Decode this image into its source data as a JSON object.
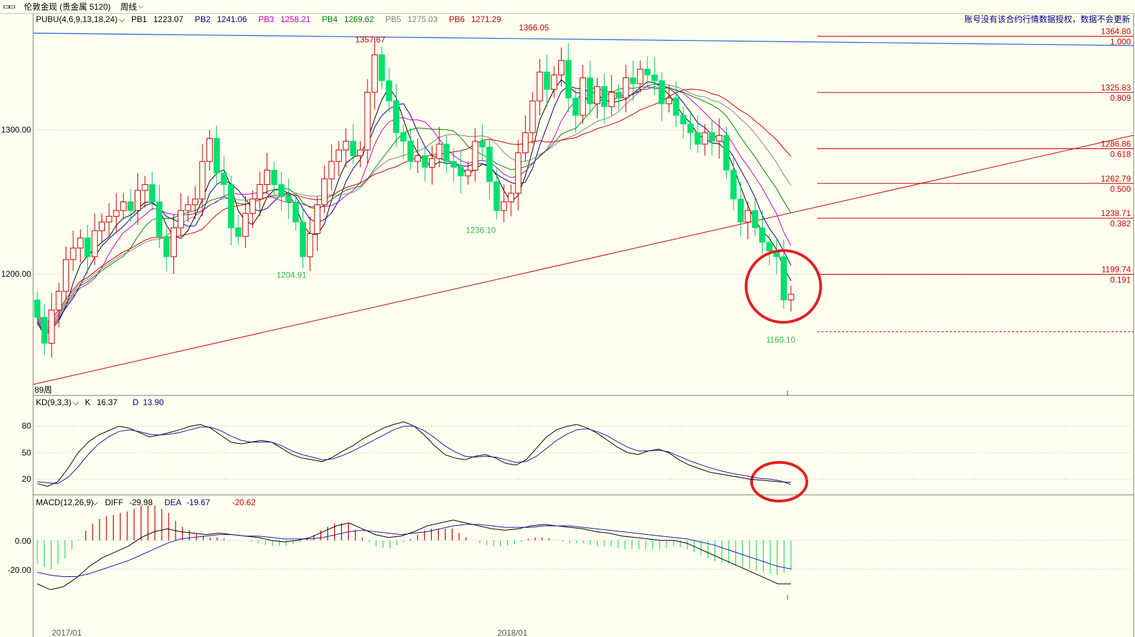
{
  "window": {
    "instrument": "伦敦金现 (贵金属 5120)",
    "period": "周线"
  },
  "notice": "账号没有该合约行情数据授权，数据不会更新",
  "main_panel": {
    "indicator_name": "PUBU(4,6,9,13,18,24)",
    "params": [
      {
        "label": "PB1",
        "value": "1223.07",
        "color": "#000000"
      },
      {
        "label": "PB2",
        "value": "1241.06",
        "color": "#000080"
      },
      {
        "label": "PB3",
        "value": "1258.21",
        "color": "#c000c0"
      },
      {
        "label": "PB4",
        "value": "1269.62",
        "color": "#008000"
      },
      {
        "label": "PB5",
        "value": "1275.03",
        "color": "#808080"
      },
      {
        "label": "PB6",
        "value": "1271.29",
        "color": "#c00000"
      }
    ],
    "y_ticks": [
      "1300.00",
      "1200.00"
    ],
    "ma_label": "89周",
    "peak_labels": [
      {
        "text": "1357.67",
        "color": "#c00000",
        "x": 1357.67
      },
      {
        "text": "1366.05",
        "color": "#c00000",
        "x": 1366.05
      },
      {
        "text": "1204.91",
        "color": "#2db84d",
        "x": 1204.91
      },
      {
        "text": "1236.10",
        "color": "#2db84d",
        "x": 1236.1
      },
      {
        "text": "1160.10",
        "color": "#2db84d",
        "x": 1160.1
      }
    ],
    "fib_levels": [
      {
        "price": "1364.80",
        "ratio": "1.000"
      },
      {
        "price": "1325.83",
        "ratio": "0.809"
      },
      {
        "price": "1286.86",
        "ratio": "0.618"
      },
      {
        "price": "1262.79",
        "ratio": "0.500"
      },
      {
        "price": "1238.71",
        "ratio": "0.382"
      },
      {
        "price": "1199.74",
        "ratio": "0.191"
      }
    ]
  },
  "kd_panel": {
    "name": "KD(9,3,3)",
    "k_label": "K",
    "k_value": "16.37",
    "d_label": "D",
    "d_value": "13.90",
    "y_ticks": [
      "80",
      "50",
      "20"
    ]
  },
  "macd_panel": {
    "name": "MACD(12,26,9)",
    "diff_label": "DIFF",
    "diff_value": "-29.98",
    "dea_label": "DEA",
    "dea_value": "-19.67",
    "macd_value": "-20.62",
    "y_ticks": [
      "0.00",
      "-20.00"
    ]
  },
  "x_axis": {
    "labels": [
      "2017/01",
      "2018/01"
    ]
  },
  "chart_data": {
    "type": "line",
    "x_labels": [
      "2017/01",
      "2018/01"
    ],
    "price_axis_ticks": [
      1300,
      1200
    ],
    "annotated_extremes": [
      1357.67,
      1366.05,
      1204.91,
      1236.1,
      1160.1
    ],
    "fibonacci": [
      {
        "price": 1364.8,
        "ratio": 1.0
      },
      {
        "price": 1325.83,
        "ratio": 0.809
      },
      {
        "price": 1286.86,
        "ratio": 0.618
      },
      {
        "price": 1262.79,
        "ratio": 0.5
      },
      {
        "price": 1238.71,
        "ratio": 0.382
      },
      {
        "price": 1199.74,
        "ratio": 0.191
      }
    ],
    "close": [
      1170,
      1152,
      1175,
      1188,
      1210,
      1218,
      1225,
      1212,
      1230,
      1236,
      1240,
      1244,
      1250,
      1244,
      1258,
      1262,
      1250,
      1226,
      1212,
      1232,
      1244,
      1248,
      1252,
      1278,
      1294,
      1270,
      1262,
      1232,
      1226,
      1242,
      1252,
      1262,
      1272,
      1262,
      1254,
      1250,
      1236,
      1212,
      1228,
      1248,
      1266,
      1278,
      1286,
      1292,
      1282,
      1286,
      1326,
      1352,
      1334,
      1320,
      1298,
      1292,
      1278,
      1282,
      1274,
      1280,
      1290,
      1278,
      1274,
      1268,
      1272,
      1292,
      1288,
      1264,
      1244,
      1250,
      1256,
      1284,
      1298,
      1320,
      1340,
      1328,
      1338,
      1348,
      1322,
      1310,
      1336,
      1318,
      1330,
      1316,
      1326,
      1322,
      1336,
      1332,
      1342,
      1338,
      1334,
      1318,
      1322,
      1310,
      1304,
      1298,
      1290,
      1298,
      1292,
      1296,
      1272,
      1252,
      1236,
      1244,
      1232,
      1222,
      1216,
      1212,
      1182,
      1186
    ],
    "k": [
      15,
      12,
      17,
      32,
      50,
      62,
      70,
      75,
      80,
      78,
      73,
      68,
      70,
      73,
      76,
      80,
      82,
      78,
      70,
      62,
      60,
      62,
      64,
      62,
      55,
      48,
      44,
      42,
      40,
      45,
      52,
      58,
      66,
      72,
      78,
      82,
      85,
      80,
      70,
      58,
      48,
      44,
      42,
      46,
      48,
      44,
      38,
      36,
      42,
      55,
      68,
      76,
      80,
      82,
      78,
      72,
      64,
      56,
      50,
      48,
      52,
      54,
      50,
      42,
      36,
      32,
      28,
      26,
      24,
      22,
      20,
      19,
      18,
      17,
      16.37
    ],
    "d": [
      17,
      16,
      15,
      22,
      34,
      48,
      60,
      68,
      74,
      76,
      74,
      71,
      70,
      71,
      73,
      76,
      79,
      79,
      75,
      69,
      64,
      62,
      62,
      62,
      58,
      52,
      48,
      45,
      42,
      43,
      47,
      52,
      58,
      64,
      70,
      76,
      80,
      80,
      75,
      67,
      58,
      51,
      46,
      45,
      46,
      45,
      42,
      39,
      40,
      46,
      55,
      64,
      71,
      76,
      77,
      74,
      69,
      62,
      56,
      52,
      52,
      53,
      51,
      46,
      41,
      37,
      33,
      30,
      27,
      25,
      23,
      21,
      20,
      18,
      13.9
    ],
    "diff": [
      -30,
      -34,
      -32,
      -26,
      -18,
      -12,
      -8,
      -4,
      2,
      6,
      8,
      6,
      5,
      4,
      5,
      4,
      3,
      2,
      0,
      -1,
      0,
      2,
      6,
      10,
      12,
      8,
      4,
      2,
      3,
      6,
      10,
      12,
      14,
      12,
      10,
      8,
      7,
      8,
      10,
      11,
      10,
      9,
      8,
      6,
      5,
      3,
      2,
      1,
      0,
      0,
      -2,
      -6,
      -10,
      -14,
      -18,
      -22,
      -26,
      -30,
      -29.98
    ],
    "dea": [
      -22,
      -24,
      -25,
      -25,
      -23,
      -20,
      -17,
      -14,
      -10,
      -6,
      -2,
      1,
      2,
      3,
      4,
      4,
      3,
      3,
      2,
      1,
      1,
      1,
      2,
      4,
      6,
      7,
      6,
      5,
      4,
      5,
      6,
      8,
      10,
      11,
      11,
      10,
      9,
      9,
      9,
      10,
      10,
      10,
      9,
      8,
      7,
      6,
      5,
      4,
      3,
      2,
      1,
      -1,
      -3,
      -6,
      -9,
      -12,
      -15,
      -18,
      -19.67
    ]
  }
}
